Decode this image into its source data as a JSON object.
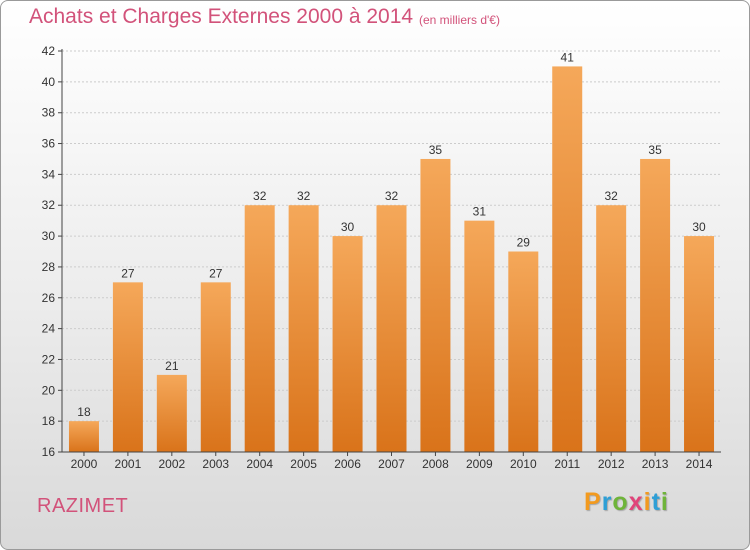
{
  "title": "Achats et Charges Externes 2000 à 2014",
  "subtitle": "(en milliers d'€)",
  "place_name": "RAZIMET",
  "logo": {
    "text": "Proxiti",
    "letters": [
      "P",
      "r",
      "o",
      "x",
      "i",
      "t",
      "i"
    ],
    "letter_colors": [
      "#f29a1f",
      "#2e9fd6",
      "#6fb43a",
      "#e0447a",
      "#f29a1f",
      "#2e9fd6",
      "#6fb43a"
    ]
  },
  "colors": {
    "bar_top": "#f5a85a",
    "bar_bottom": "#d9731a",
    "text": "#d2527a",
    "axis": "#444444",
    "grid": "#cccccc"
  },
  "chart_data": {
    "type": "bar",
    "title": "Achats et Charges Externes 2000 à 2014",
    "subtitle": "(en milliers d'€)",
    "categories": [
      "2000",
      "2001",
      "2002",
      "2003",
      "2004",
      "2005",
      "2006",
      "2007",
      "2008",
      "2009",
      "2010",
      "2011",
      "2012",
      "2013",
      "2014"
    ],
    "values": [
      18,
      27,
      21,
      27,
      32,
      32,
      30,
      32,
      35,
      31,
      29,
      41,
      32,
      35,
      30
    ],
    "ylim": [
      16,
      42
    ],
    "yticks": [
      16,
      18,
      20,
      22,
      24,
      26,
      28,
      30,
      32,
      34,
      36,
      38,
      40,
      42
    ],
    "grid": true,
    "data_labels": true
  }
}
